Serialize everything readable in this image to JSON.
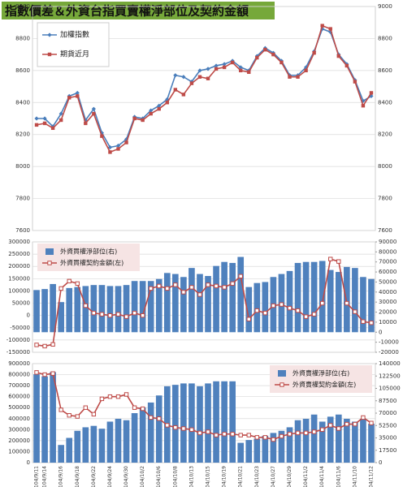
{
  "chart_data": [
    {
      "type": "line",
      "title": "指數價差＆外資台指買賣權淨部位及契約金額",
      "ylim": [
        7600,
        9000
      ],
      "yticks": [
        7600,
        7800,
        8000,
        8200,
        8400,
        8600,
        8800,
        9000
      ],
      "right_ticks": true,
      "grid": true,
      "legend": "top-left",
      "series": [
        {
          "name": "加權指數",
          "color": "#4a7ebb",
          "marker": "diamond",
          "values": [
            8300,
            8300,
            8250,
            8330,
            8440,
            8460,
            8290,
            8360,
            8210,
            8120,
            8130,
            8170,
            8310,
            8300,
            8350,
            8380,
            8420,
            8570,
            8560,
            8530,
            8600,
            8610,
            8630,
            8640,
            8660,
            8620,
            8600,
            8690,
            8740,
            8710,
            8660,
            8570,
            8570,
            8620,
            8720,
            8860,
            8840,
            8700,
            8640,
            8540,
            8410,
            8440
          ]
        },
        {
          "name": "期貨近月",
          "color": "#be4b48",
          "marker": "square",
          "values": [
            8260,
            8270,
            8240,
            8290,
            8430,
            8440,
            8270,
            8330,
            8190,
            8090,
            8110,
            8150,
            8300,
            8290,
            8330,
            8360,
            8400,
            8480,
            8450,
            8520,
            8560,
            8550,
            8610,
            8620,
            8650,
            8600,
            8590,
            8680,
            8730,
            8700,
            8650,
            8560,
            8560,
            8600,
            8710,
            8880,
            8860,
            8690,
            8630,
            8530,
            8380,
            8460
          ]
        }
      ]
    },
    {
      "type": "combo",
      "grid": true,
      "legend": "top-left",
      "ylim": [
        -150000,
        300000
      ],
      "yticks": [
        -150000,
        -100000,
        -50000,
        0,
        50000,
        100000,
        150000,
        200000,
        250000,
        300000
      ],
      "y2lim": [
        -20000,
        90000
      ],
      "y2ticks": [
        -20000,
        -10000,
        0,
        10000,
        20000,
        30000,
        40000,
        50000,
        60000,
        70000,
        80000,
        90000
      ],
      "series": [
        {
          "name": "外資買權淨部位(右)",
          "kind": "bar",
          "axis": "y2",
          "color": "#4f81bd",
          "values": [
            42000,
            43000,
            48000,
            30000,
            44000,
            45000,
            46000,
            47000,
            47000,
            46000,
            46000,
            47000,
            51000,
            51000,
            51000,
            53000,
            59000,
            58000,
            55000,
            64000,
            58000,
            56000,
            66000,
            70000,
            69000,
            75000,
            45000,
            49000,
            50000,
            55000,
            58000,
            61000,
            69000,
            70000,
            70000,
            71000,
            62000,
            60000,
            65000,
            64000,
            55000,
            53000
          ]
        },
        {
          "name": "外資買權契約金額(左)",
          "kind": "line",
          "color": "#be4b48",
          "marker": "open-square",
          "values": [
            -120000,
            -125000,
            -118000,
            110000,
            140000,
            130000,
            40000,
            10000,
            5000,
            0,
            5000,
            -5000,
            10000,
            0,
            110000,
            120000,
            110000,
            125000,
            95000,
            115000,
            85000,
            125000,
            120000,
            115000,
            130000,
            160000,
            -15000,
            20000,
            10000,
            40000,
            45000,
            30000,
            20000,
            -5000,
            5000,
            50000,
            230000,
            220000,
            50000,
            15000,
            -25000,
            -30000
          ]
        }
      ]
    },
    {
      "type": "combo",
      "grid": true,
      "legend": "top-right",
      "ylim": [
        0,
        900000
      ],
      "yticks": [
        0,
        100000,
        200000,
        300000,
        400000,
        500000,
        600000,
        700000,
        800000,
        900000
      ],
      "y2lim": [
        0,
        140000
      ],
      "y2ticks": [
        0,
        17500,
        35000,
        52500,
        70000,
        87500,
        105000,
        122500,
        140000
      ],
      "categories": [
        "104/9/11",
        "104/9/14",
        null,
        "104/9/16",
        null,
        "104/9/18",
        null,
        "104/9/22",
        null,
        "104/9/24",
        null,
        "104/9/30",
        null,
        "104/10/2",
        null,
        "104/10/6",
        null,
        "104/10/8",
        null,
        "104/10/13",
        null,
        "104/10/15",
        null,
        "104/10/19",
        null,
        "104/10/21",
        null,
        "104/10/23",
        null,
        "104/10/27",
        null,
        "104/10/29",
        null,
        "104/11/2",
        null,
        "104/11/4",
        null,
        "104/11/6",
        null,
        "104/11/10",
        null,
        "104/11/12"
      ],
      "series": [
        {
          "name": "外資賣權淨部位(右)",
          "kind": "bar",
          "axis": "y2",
          "color": "#4f81bd",
          "values": [
            125000,
            122000,
            128000,
            25000,
            35000,
            45000,
            50000,
            52000,
            48000,
            58000,
            62000,
            60000,
            70000,
            78000,
            85000,
            95000,
            108000,
            110000,
            112000,
            112000,
            108000,
            112000,
            115000,
            115000,
            115000,
            28000,
            32000,
            34000,
            38000,
            42000,
            45000,
            50000,
            60000,
            62000,
            68000,
            58000,
            65000,
            68000,
            62000,
            58000,
            62000,
            55000
          ]
        },
        {
          "name": "外資賣權契約金額(左)",
          "kind": "line",
          "color": "#be4b48",
          "marker": "open-square",
          "values": [
            820000,
            800000,
            810000,
            480000,
            430000,
            420000,
            500000,
            440000,
            580000,
            600000,
            600000,
            620000,
            500000,
            490000,
            410000,
            400000,
            340000,
            320000,
            310000,
            300000,
            270000,
            280000,
            250000,
            260000,
            260000,
            250000,
            250000,
            230000,
            230000,
            210000,
            240000,
            260000,
            270000,
            270000,
            280000,
            300000,
            340000,
            310000,
            350000,
            350000,
            410000,
            360000
          ]
        }
      ]
    }
  ]
}
